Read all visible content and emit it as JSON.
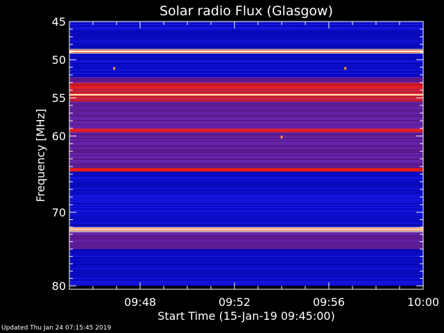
{
  "chart_data": {
    "type": "heatmap",
    "title": "Solar radio Flux (Glasgow)",
    "xlabel": "Start Time (15-Jan-19 09:45:00)",
    "ylabel": "Frequency [MHz]",
    "x_range_minutes": [
      0,
      15
    ],
    "x_ticks": [
      {
        "minute": 3,
        "label": "09:48"
      },
      {
        "minute": 7,
        "label": "09:52"
      },
      {
        "minute": 11,
        "label": "09:56"
      },
      {
        "minute": 15,
        "label": "10:00"
      }
    ],
    "ylim": [
      80,
      45
    ],
    "y_ticks": [
      {
        "value": 45,
        "label": "45"
      },
      {
        "value": 50,
        "label": "50"
      },
      {
        "value": 55,
        "label": "55"
      },
      {
        "value": 60,
        "label": "60"
      },
      {
        "value": 70,
        "label": "70"
      },
      {
        "value": 80,
        "label": "80"
      }
    ],
    "colors": {
      "background": "#000000",
      "low": "#0a0ad2",
      "mid": "#6e1e96",
      "high": "#e61e1e",
      "peak": "#ffffd2"
    },
    "intensity_bands": [
      {
        "freq": [
          45.0,
          45.6
        ],
        "level": "low"
      },
      {
        "freq": [
          45.6,
          48.6
        ],
        "level": "low"
      },
      {
        "freq": [
          48.6,
          49.2
        ],
        "level": "peak"
      },
      {
        "freq": [
          49.2,
          52.3
        ],
        "level": "low"
      },
      {
        "freq": [
          52.3,
          53.0
        ],
        "level": "mid"
      },
      {
        "freq": [
          53.0,
          55.5
        ],
        "level": "high"
      },
      {
        "freq": [
          55.5,
          59.0
        ],
        "level": "mid"
      },
      {
        "freq": [
          59.0,
          59.5
        ],
        "level": "high"
      },
      {
        "freq": [
          59.5,
          64.2
        ],
        "level": "mid"
      },
      {
        "freq": [
          64.2,
          64.7
        ],
        "level": "high"
      },
      {
        "freq": [
          64.7,
          72.0
        ],
        "level": "low"
      },
      {
        "freq": [
          72.0,
          72.7
        ],
        "level": "peak"
      },
      {
        "freq": [
          72.7,
          75.0
        ],
        "level": "mid"
      },
      {
        "freq": [
          75.0,
          80.0
        ],
        "level": "low"
      }
    ],
    "bright_lines": [
      {
        "freq": 48.9,
        "level": "peak"
      },
      {
        "freq": 53.6,
        "level": "high"
      },
      {
        "freq": 54.6,
        "level": "peak"
      },
      {
        "freq": 59.3,
        "level": "high"
      },
      {
        "freq": 64.4,
        "level": "high"
      },
      {
        "freq": 72.3,
        "level": "peak"
      }
    ],
    "spots": [
      {
        "minute": 1.9,
        "freq": 51.1
      },
      {
        "minute": 11.7,
        "freq": 51.1
      },
      {
        "minute": 9.0,
        "freq": 60.1
      }
    ]
  },
  "footer": {
    "updated": "Updated Thu Jan 24 07:15:45 2019"
  }
}
